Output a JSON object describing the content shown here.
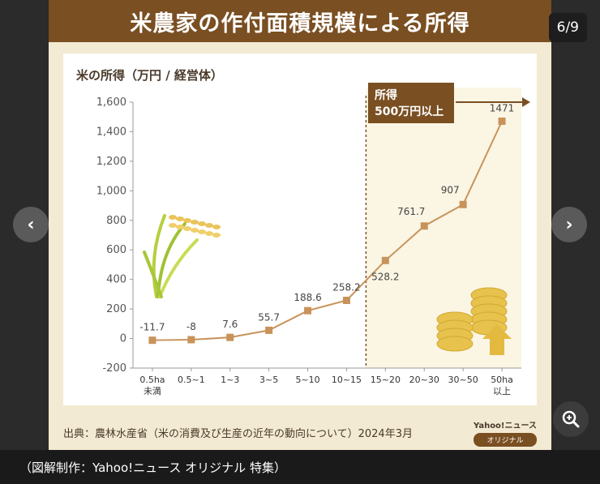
{
  "title": "米農家の作付面積規模による所得",
  "counter": "6/9",
  "nav": {
    "prev": "‹",
    "next": "›"
  },
  "colors": {
    "accent": "#7a4f22",
    "marker": "#c8935a",
    "highlight_bg": "#fbf5e4",
    "axis_text": "#555555"
  },
  "tier_label_line1": "所得",
  "tier_label_line2": "500万円以上",
  "source": "出典：農林水産省（米の消費及び生産の近年の動向について）2024年3月",
  "logo_top": "Yahoo!ニュース",
  "logo_badge": "オリジナル",
  "caption": "（図解制作：Yahoo!ニュース オリジナル 特集）",
  "icons": [
    "rice-plant-icon",
    "coin-stack-icon",
    "up-arrow-icon",
    "zoom-icon"
  ],
  "chart_data": {
    "type": "line",
    "title": "米の所得（万円 / 経営体）",
    "xlabel": "",
    "ylabel": "",
    "categories": [
      "0.5ha\n未満",
      "0.5~1",
      "1~3",
      "3~5",
      "5~10",
      "10~15",
      "15~20",
      "20~30",
      "30~50",
      "50ha\n以上"
    ],
    "values": [
      -11.7,
      -8,
      7.6,
      55.7,
      188.6,
      258.2,
      528.2,
      761.7,
      907,
      1471
    ],
    "value_labels": [
      "-11.7",
      "-8",
      "7.6",
      "55.7",
      "188.6",
      "258.2",
      "528.2",
      "761.7",
      "907",
      "1471"
    ],
    "ylim": [
      -200,
      1600
    ],
    "yticks": [
      -200,
      0,
      200,
      400,
      600,
      800,
      1000,
      1200,
      1400,
      1600
    ],
    "ytick_labels": [
      "-200",
      "0",
      "200",
      "400",
      "600",
      "800",
      "1,000",
      "1,200",
      "1,400",
      "1,600"
    ],
    "highlight_from_index": 6,
    "grid": false,
    "legend": "none"
  }
}
